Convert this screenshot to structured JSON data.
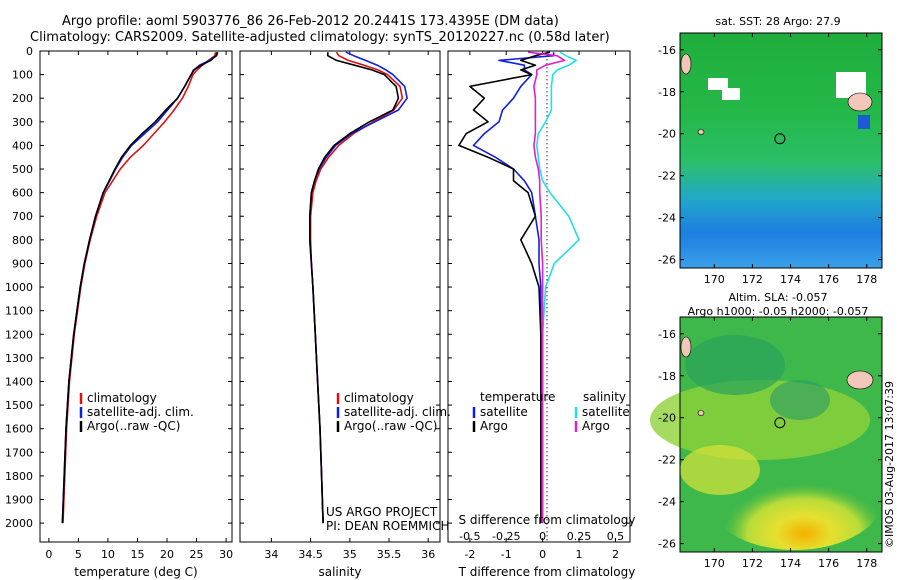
{
  "title_line1": "Argo profile: aoml 5903776_86 26-Feb-2012 20.2441S 173.4395E (DM data)",
  "title_line2": "Climatology: CARS2009. Satellite-adjusted climatology: synTS_20120227.nc (0.58d later)",
  "credit": "US ARGO PROJECT",
  "pi": "PI: DEAN ROEMMICH",
  "footer_stamp": "©IMOS 03-Aug-2017 13:07:39",
  "colors": {
    "climatology": "#e01010",
    "satellite": "#1020e0",
    "argo": "#000000",
    "sal_satellite": "#20e0e8",
    "sal_argo": "#e020d0"
  },
  "depth_axis": {
    "ticks": [
      0,
      100,
      200,
      300,
      400,
      500,
      600,
      700,
      800,
      900,
      1000,
      1100,
      1200,
      1300,
      1400,
      1500,
      1600,
      1700,
      1800,
      1900,
      2000
    ],
    "range": [
      0,
      2080
    ]
  },
  "chart_data": [
    {
      "type": "line",
      "name": "temperature",
      "xlabel": "temperature (deg C)",
      "xlim": [
        -1.5,
        31
      ],
      "xticks": [
        0,
        5,
        10,
        15,
        20,
        25,
        30
      ],
      "xticklabels": [
        "0",
        "5",
        "10",
        "15",
        "20",
        "25",
        "30"
      ],
      "legend": [
        "climatology",
        "satellite-adj. clim.",
        "Argo(..raw -QC)"
      ],
      "y_depth": [
        5,
        20,
        40,
        60,
        80,
        100,
        150,
        200,
        250,
        300,
        350,
        400,
        450,
        500,
        550,
        600,
        700,
        800,
        900,
        1000,
        1200,
        1400,
        1600,
        1800,
        2000
      ],
      "series": [
        {
          "name": "climatology",
          "values": [
            28.2,
            28.1,
            27.0,
            26.0,
            25.1,
            24.4,
            23.6,
            22.6,
            21.2,
            19.6,
            17.8,
            16.0,
            13.8,
            12.1,
            10.8,
            9.5,
            8.1,
            7.0,
            6.1,
            5.4,
            4.3,
            3.5,
            3.0,
            2.7,
            2.4
          ]
        },
        {
          "name": "satellite-adj. clim.",
          "values": [
            28.6,
            28.4,
            27.2,
            25.5,
            24.6,
            24.1,
            23.0,
            21.8,
            20.1,
            18.4,
            16.2,
            14.0,
            12.5,
            11.3,
            10.3,
            9.2,
            7.9,
            6.9,
            6.0,
            5.3,
            4.2,
            3.4,
            2.9,
            2.6,
            2.3
          ]
        },
        {
          "name": "Argo(..raw -QC)",
          "values": [
            28.5,
            28.3,
            27.4,
            25.8,
            24.5,
            24.1,
            23.0,
            21.8,
            19.8,
            18.0,
            15.8,
            13.8,
            12.3,
            11.2,
            10.2,
            9.2,
            7.9,
            6.9,
            6.0,
            5.3,
            4.2,
            3.4,
            2.9,
            2.6,
            2.3
          ]
        }
      ]
    },
    {
      "type": "line",
      "name": "salinity",
      "xlabel": "salinity",
      "xlim": [
        33.6,
        36.15
      ],
      "xticks": [
        34,
        34.5,
        35,
        35.5,
        36
      ],
      "xticklabels": [
        "34",
        "34.5",
        "35",
        "35.5",
        "36"
      ],
      "legend": [
        "climatology",
        "satellite-adj. clim.",
        "Argo(..raw -QC)"
      ],
      "y_depth": [
        5,
        20,
        40,
        60,
        80,
        100,
        150,
        200,
        250,
        300,
        350,
        400,
        450,
        500,
        550,
        600,
        700,
        800,
        900,
        1000,
        1200,
        1400,
        1600,
        1800,
        2000
      ],
      "series": [
        {
          "name": "climatology",
          "values": [
            34.83,
            34.86,
            34.98,
            35.18,
            35.36,
            35.48,
            35.64,
            35.67,
            35.56,
            35.3,
            35.05,
            34.86,
            34.73,
            34.63,
            34.57,
            34.53,
            34.5,
            34.5,
            34.51,
            34.53,
            34.56,
            34.59,
            34.62,
            34.64,
            34.66
          ]
        },
        {
          "name": "satellite-adj. clim.",
          "values": [
            34.95,
            35.05,
            35.2,
            35.35,
            35.46,
            35.55,
            35.7,
            35.73,
            35.62,
            35.32,
            35.02,
            34.82,
            34.7,
            34.61,
            34.55,
            34.51,
            34.49,
            34.49,
            34.51,
            34.53,
            34.56,
            34.59,
            34.62,
            34.64,
            34.66
          ]
        },
        {
          "name": "Argo(..raw -QC)",
          "values": [
            34.72,
            34.72,
            34.83,
            35.06,
            35.28,
            35.44,
            35.59,
            35.62,
            35.55,
            35.25,
            35.0,
            34.8,
            34.68,
            34.6,
            34.55,
            34.51,
            34.49,
            34.49,
            34.51,
            34.53,
            34.56,
            34.59,
            34.62,
            34.64,
            34.66
          ]
        }
      ]
    },
    {
      "type": "line",
      "name": "difference",
      "xlabel": "T difference from climatology",
      "xlabel2": "S difference from climatology",
      "xlim": [
        -2.6,
        2.4
      ],
      "xticks": [
        -2,
        -1,
        0,
        1,
        2
      ],
      "xticklabels": [
        "-2",
        "-1",
        "0",
        "1",
        "2"
      ],
      "xticks_s": [
        -0.5,
        -0.25,
        0,
        0.25,
        0.5
      ],
      "xticklabels_s": [
        "-0.5",
        "-0.25",
        "0",
        "0.25",
        "0.5"
      ],
      "s_scale": 4,
      "legend_left_title": "temperature",
      "legend_right_title": "salinity",
      "legend_left": [
        "satellite",
        "Argo"
      ],
      "legend_right": [
        "satellite",
        "Argo"
      ],
      "y_depth": [
        5,
        20,
        40,
        60,
        80,
        100,
        150,
        200,
        250,
        300,
        350,
        400,
        450,
        500,
        550,
        600,
        700,
        800,
        900,
        1000,
        1200,
        1400,
        1600,
        1800,
        2000
      ],
      "series": [
        {
          "name": "T satellite",
          "values": [
            0.3,
            0.3,
            -1.2,
            -0.5,
            -0.5,
            -0.3,
            -0.6,
            -0.8,
            -1.1,
            -1.2,
            -1.6,
            -1.9,
            -1.3,
            -0.8,
            -0.5,
            -0.3,
            -0.2,
            -0.1,
            -0.1,
            -0.05,
            -0.05,
            -0.05,
            -0.05,
            -0.05,
            -0.05
          ]
        },
        {
          "name": "T Argo",
          "values": [
            0.2,
            -0.2,
            -0.6,
            -0.2,
            -0.6,
            -0.3,
            -2.0,
            -1.6,
            -1.9,
            -1.5,
            -2.1,
            -2.3,
            -1.5,
            -0.8,
            -0.8,
            -0.4,
            -0.2,
            -0.6,
            -0.3,
            -0.1,
            -0.05,
            -0.05,
            -0.05,
            -0.05,
            -0.05
          ]
        },
        {
          "name": "S satellite",
          "values": [
            0.12,
            0.16,
            0.23,
            0.18,
            0.1,
            0.07,
            0.06,
            0.06,
            0.06,
            0.02,
            -0.03,
            -0.04,
            -0.03,
            -0.02,
            0.0,
            0.05,
            0.18,
            0.25,
            0.08,
            0.02,
            0.0,
            0.0,
            0.0,
            0.0,
            0.0
          ]
        },
        {
          "name": "S Argo",
          "values": [
            -0.1,
            0.1,
            0.15,
            0.02,
            -0.04,
            -0.04,
            -0.06,
            -0.05,
            -0.05,
            -0.05,
            -0.05,
            -0.06,
            -0.05,
            -0.03,
            -0.02,
            -0.02,
            -0.01,
            -0.01,
            0.0,
            0.0,
            0.0,
            0.0,
            0.0,
            0.0,
            0.0
          ]
        }
      ]
    },
    {
      "type": "heatmap",
      "name": "sst_map",
      "title": "sat. SST: 28 Argo: 27.9",
      "lon_ticks": [
        170,
        172,
        174,
        176,
        178
      ],
      "lat_ticks": [
        -16,
        -18,
        -20,
        -22,
        -24,
        -26
      ],
      "lon_range": [
        168.2,
        178.8
      ],
      "lat_range": [
        -26.4,
        -15.2
      ],
      "marker": {
        "lon": 173.44,
        "lat": -20.24
      }
    },
    {
      "type": "heatmap",
      "name": "sla_map",
      "title": "Altim. SLA: -0.057",
      "subtitle": "Argo h1000: -0.05 h2000: -0.057",
      "lon_ticks": [
        170,
        172,
        174,
        176,
        178
      ],
      "lat_ticks": [
        -16,
        -18,
        -20,
        -22,
        -24,
        -26
      ],
      "lon_range": [
        168.2,
        178.8
      ],
      "lat_range": [
        -26.4,
        -15.2
      ],
      "marker": {
        "lon": 173.44,
        "lat": -20.24
      }
    }
  ]
}
